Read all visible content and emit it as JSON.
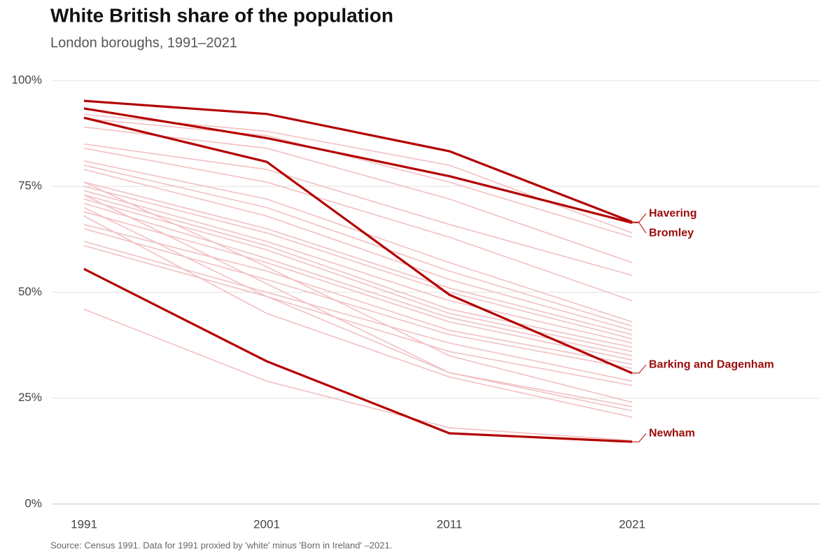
{
  "chart_data": {
    "type": "line",
    "title": "White British share of the population",
    "subtitle": "London boroughs, 1991–2021",
    "source": "Source: Census 1991. Data for 1991 proxied by 'white' minus 'Born in Ireland' –2021.",
    "x": [
      1991,
      2001,
      2011,
      2021
    ],
    "xlim": [
      1991,
      2021
    ],
    "xticks": [
      1991,
      2001,
      2011,
      2021
    ],
    "ylim": [
      0,
      100
    ],
    "yticks": [
      {
        "value": 0,
        "label": "0%"
      },
      {
        "value": 25,
        "label": "25%"
      },
      {
        "value": 50,
        "label": "50%"
      },
      {
        "value": 75,
        "label": "75%"
      },
      {
        "value": 100,
        "label": "100%"
      }
    ],
    "grid": true,
    "series": [
      {
        "color": "#f2c0c2",
        "values": [
          92,
          88,
          80,
          64
        ]
      },
      {
        "color": "#f2c0c2",
        "values": [
          91,
          87,
          76,
          63
        ]
      },
      {
        "color": "#f2c0c2",
        "values": [
          89,
          84,
          72,
          57
        ]
      },
      {
        "color": "#f2c0c2",
        "values": [
          85,
          79,
          66,
          54
        ]
      },
      {
        "color": "#f2c0c2",
        "values": [
          84,
          76,
          63,
          48
        ]
      },
      {
        "color": "#f2c0c2",
        "values": [
          81,
          72,
          57,
          43
        ]
      },
      {
        "color": "#f2c0c2",
        "values": [
          80,
          70,
          55,
          42
        ]
      },
      {
        "color": "#f2c0c2",
        "values": [
          79,
          68,
          53,
          41
        ]
      },
      {
        "color": "#f2c0c2",
        "values": [
          76,
          65,
          51,
          40
        ]
      },
      {
        "color": "#f2c0c2",
        "values": [
          75,
          64,
          50,
          39
        ]
      },
      {
        "color": "#f2c0c2",
        "values": [
          74,
          62,
          48,
          38
        ]
      },
      {
        "color": "#f2c0c2",
        "values": [
          73,
          61,
          46,
          37
        ]
      },
      {
        "color": "#f2c0c2",
        "values": [
          72,
          60,
          45,
          36
        ]
      },
      {
        "color": "#f2c0c2",
        "values": [
          71,
          58,
          44,
          35
        ]
      },
      {
        "color": "#f2c0c2",
        "values": [
          69,
          57,
          43,
          34
        ]
      },
      {
        "color": "#f2c0c2",
        "values": [
          66,
          55,
          41,
          33
        ]
      },
      {
        "color": "#f2c0c2",
        "values": [
          65,
          53,
          40,
          32
        ]
      },
      {
        "color": "#f2c0c2",
        "values": [
          62,
          50,
          38,
          29
        ]
      },
      {
        "color": "#f2c0c2",
        "values": [
          61,
          49,
          36,
          28
        ]
      },
      {
        "color": "#f2c0c2",
        "values": [
          76,
          56,
          35,
          24
        ]
      },
      {
        "color": "#f2c0c2",
        "values": [
          73,
          52,
          31,
          23
        ]
      },
      {
        "color": "#f2c0c2",
        "values": [
          70,
          49,
          31,
          22
        ]
      },
      {
        "color": "#f2c0c2",
        "values": [
          68,
          45,
          30,
          20.5
        ]
      },
      {
        "color": "#f2c0c2",
        "values": [
          46,
          29,
          18,
          15
        ]
      },
      {
        "name": "Havering",
        "color": "#b30000",
        "values": [
          95.2,
          92.1,
          83.3,
          66.6
        ]
      },
      {
        "name": "Bromley",
        "color": "#b30000",
        "values": [
          93.4,
          86.4,
          77.4,
          66.4
        ]
      },
      {
        "name": "Barking and Dagenham",
        "color": "#b30000",
        "values": [
          91.2,
          80.8,
          49.4,
          30.9
        ]
      },
      {
        "name": "Newham",
        "color": "#b30000",
        "values": [
          55.5,
          33.7,
          16.7,
          14.7
        ]
      }
    ]
  }
}
